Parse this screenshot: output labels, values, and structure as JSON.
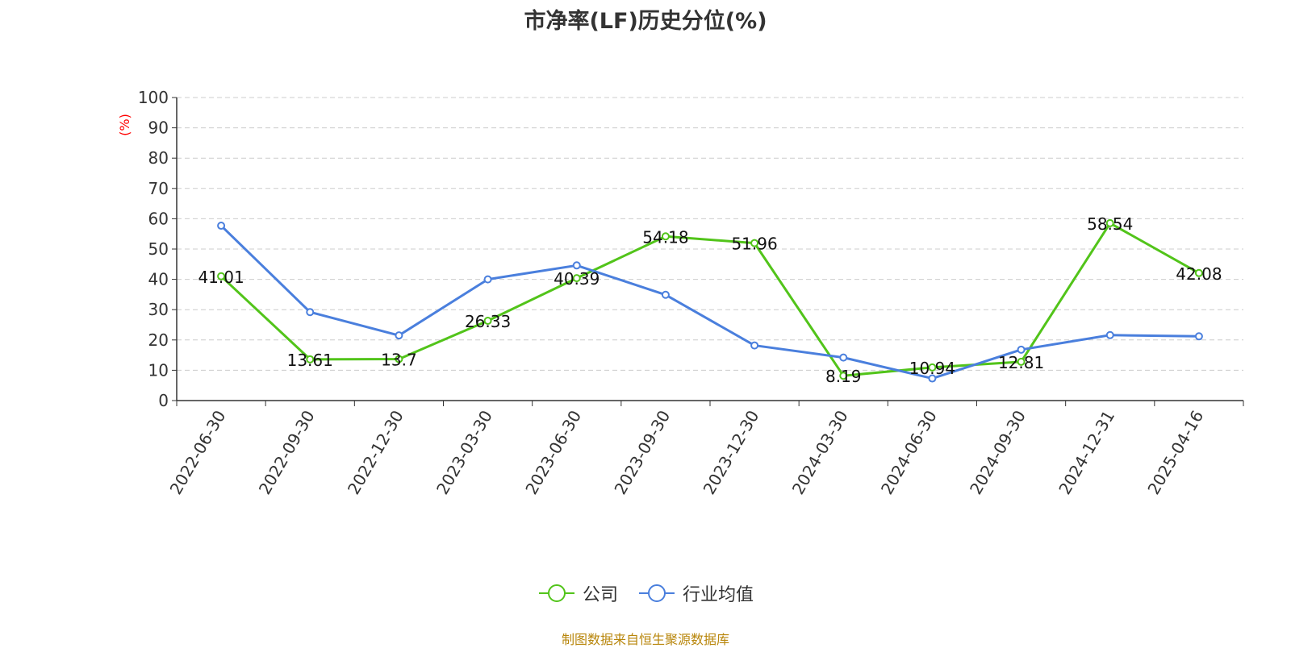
{
  "chart_data": {
    "type": "line",
    "title": "市净率(LF)历史分位(%)",
    "ylabel": "(%)",
    "xlabel": "",
    "categories": [
      "2022-06-30",
      "2022-09-30",
      "2022-12-30",
      "2023-03-30",
      "2023-06-30",
      "2023-09-30",
      "2023-12-30",
      "2024-03-30",
      "2024-06-30",
      "2024-09-30",
      "2024-12-31",
      "2025-04-16"
    ],
    "ylim": [
      0,
      100
    ],
    "yticks": [
      0,
      10,
      20,
      30,
      40,
      50,
      60,
      70,
      80,
      90,
      100
    ],
    "grid": true,
    "legend_position": "bottom-center",
    "series": [
      {
        "name": "公司",
        "color": "#52c41a",
        "show_labels": true,
        "values": [
          41.01,
          13.61,
          13.7,
          26.33,
          40.39,
          54.18,
          51.96,
          8.19,
          10.94,
          12.81,
          58.54,
          42.08
        ]
      },
      {
        "name": "行业均值",
        "color": "#4a7fdd",
        "show_labels": false,
        "values": [
          57.7,
          29.2,
          21.5,
          40.0,
          44.6,
          34.9,
          18.2,
          14.2,
          7.3,
          16.8,
          21.6,
          21.2
        ]
      }
    ]
  },
  "source": "制图数据来自恒生聚源数据库",
  "colors": {
    "ylabel": "#ff0000",
    "source": "#b8860b",
    "grid": "#cccccc",
    "axis": "#333333"
  }
}
